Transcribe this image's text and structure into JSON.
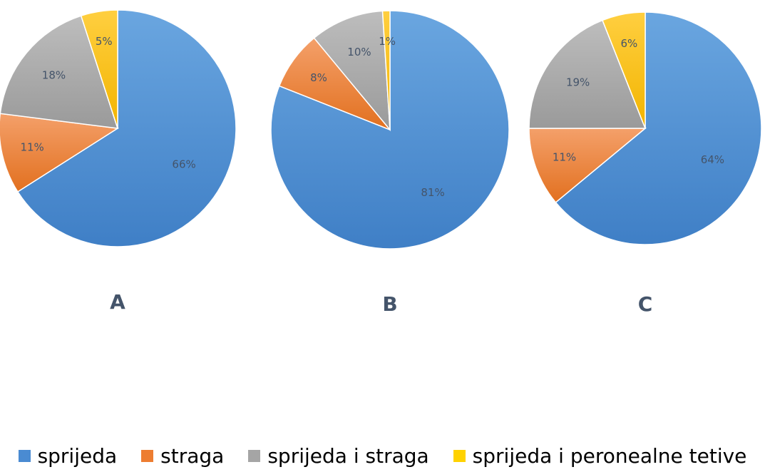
{
  "chart_data": [
    {
      "type": "pie",
      "title": "A",
      "categories": [
        "sprijeda",
        "straga",
        "sprijeda i straga",
        "sprijeda i peronealne tetive"
      ],
      "values": [
        66,
        11,
        18,
        5
      ],
      "labels": [
        "66%",
        "11%",
        "18%",
        "5%"
      ]
    },
    {
      "type": "pie",
      "title": "B",
      "categories": [
        "sprijeda",
        "straga",
        "sprijeda i straga",
        "sprijeda i peronealne tetive"
      ],
      "values": [
        81,
        8,
        10,
        1
      ],
      "labels": [
        "81%",
        "8%",
        "10%",
        "1%"
      ]
    },
    {
      "type": "pie",
      "title": "C",
      "categories": [
        "sprijeda",
        "straga",
        "sprijeda i straga",
        "sprijeda i peronealne tetive"
      ],
      "values": [
        64,
        11,
        19,
        6
      ],
      "labels": [
        "64%",
        "11%",
        "19%",
        "6%"
      ]
    }
  ],
  "legend": {
    "placement": "bottom",
    "items": [
      {
        "label": "sprijeda",
        "color": "#4a8bd2"
      },
      {
        "label": "straga",
        "color": "#ed7d31"
      },
      {
        "label": "sprijeda i straga",
        "color": "#a5a5a5"
      },
      {
        "label": "sprijeda i peronealne tetive",
        "color": "#ffd200"
      }
    ]
  },
  "colors": {
    "slice_colors": [
      "#4a8bd2",
      "#ed7d31",
      "#a5a5a5",
      "#ffc000"
    ],
    "label_text": "#44546a"
  }
}
